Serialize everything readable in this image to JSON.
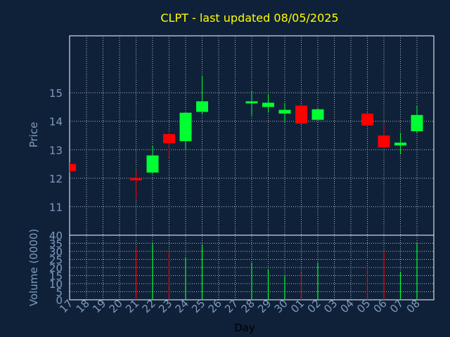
{
  "colors": {
    "background": "#0f2138",
    "title": "#ffff00",
    "axis_text": "#7e9bc0",
    "frame": "#ffffff",
    "grid": "#c8d0dc",
    "up": "#00ff33",
    "down": "#ff0000"
  },
  "chart_data": [
    {
      "type": "candlestick",
      "title": "CLPT - last updated 08/05/2025",
      "ylabel": "Price",
      "xlabel": "",
      "ylim": [
        10,
        17
      ],
      "y_ticks": [
        11,
        12,
        13,
        14,
        15
      ],
      "y_tick_labels": [
        "11",
        "12",
        "13",
        "14",
        "15"
      ],
      "grid": true,
      "x": [
        "17",
        "18",
        "19",
        "20",
        "21",
        "22",
        "23",
        "24",
        "25",
        "26",
        "27",
        "28",
        "29",
        "30",
        "01",
        "02",
        "03",
        "04",
        "05",
        "06",
        "07",
        "08"
      ],
      "candles": [
        {
          "x": "17",
          "open": 12.5,
          "high": 12.55,
          "low": 12.2,
          "close": 12.25
        },
        {
          "x": "21",
          "open": 12.0,
          "high": 12.25,
          "low": 11.25,
          "close": 11.93
        },
        {
          "x": "22",
          "open": 12.2,
          "high": 13.15,
          "low": 12.15,
          "close": 12.8
        },
        {
          "x": "23",
          "open": 13.55,
          "high": 13.6,
          "low": 12.7,
          "close": 13.23
        },
        {
          "x": "24",
          "open": 13.3,
          "high": 14.3,
          "low": 13.0,
          "close": 14.3
        },
        {
          "x": "25",
          "open": 14.33,
          "high": 15.6,
          "low": 14.25,
          "close": 14.7
        },
        {
          "x": "28",
          "open": 14.68,
          "high": 15.05,
          "low": 14.2,
          "close": 14.7
        },
        {
          "x": "29",
          "open": 14.5,
          "high": 14.95,
          "low": 14.3,
          "close": 14.65
        },
        {
          "x": "30",
          "open": 14.27,
          "high": 14.65,
          "low": 13.95,
          "close": 14.4
        },
        {
          "x": "01",
          "open": 14.55,
          "high": 14.6,
          "low": 13.9,
          "close": 13.92
        },
        {
          "x": "02",
          "open": 14.05,
          "high": 14.45,
          "low": 14.05,
          "close": 14.42
        },
        {
          "x": "05",
          "open": 14.27,
          "high": 14.3,
          "low": 13.85,
          "close": 13.85
        },
        {
          "x": "06",
          "open": 13.5,
          "high": 13.85,
          "low": 13.05,
          "close": 13.08
        },
        {
          "x": "07",
          "open": 13.15,
          "high": 13.6,
          "low": 12.85,
          "close": 13.25
        },
        {
          "x": "08",
          "open": 13.65,
          "high": 14.55,
          "low": 13.6,
          "close": 14.22
        }
      ]
    },
    {
      "type": "bar",
      "ylabel": "Volume (0000)",
      "xlabel": "Day",
      "ylim": [
        0,
        40
      ],
      "y_ticks": [
        0,
        5,
        10,
        15,
        20,
        25,
        30,
        35,
        40
      ],
      "y_tick_labels": [
        "0",
        "5",
        "10",
        "15",
        "20",
        "25",
        "30",
        "35",
        "40"
      ],
      "grid": true,
      "x": [
        "17",
        "18",
        "19",
        "20",
        "21",
        "22",
        "23",
        "24",
        "25",
        "26",
        "27",
        "28",
        "29",
        "30",
        "01",
        "02",
        "03",
        "04",
        "05",
        "06",
        "07",
        "08"
      ],
      "bars": [
        {
          "x": "17",
          "value": 0,
          "direction": "down"
        },
        {
          "x": "21",
          "value": 32,
          "direction": "down"
        },
        {
          "x": "22",
          "value": 35,
          "direction": "up"
        },
        {
          "x": "23",
          "value": 30,
          "direction": "down"
        },
        {
          "x": "24",
          "value": 26,
          "direction": "up"
        },
        {
          "x": "25",
          "value": 34,
          "direction": "up"
        },
        {
          "x": "28",
          "value": 23,
          "direction": "up"
        },
        {
          "x": "29",
          "value": 19,
          "direction": "up"
        },
        {
          "x": "30",
          "value": 15,
          "direction": "up"
        },
        {
          "x": "01",
          "value": 17,
          "direction": "down"
        },
        {
          "x": "02",
          "value": 23,
          "direction": "up"
        },
        {
          "x": "05",
          "value": 20,
          "direction": "down"
        },
        {
          "x": "06",
          "value": 30,
          "direction": "down"
        },
        {
          "x": "07",
          "value": 17,
          "direction": "up"
        },
        {
          "x": "08",
          "value": 35,
          "direction": "up"
        }
      ]
    }
  ]
}
